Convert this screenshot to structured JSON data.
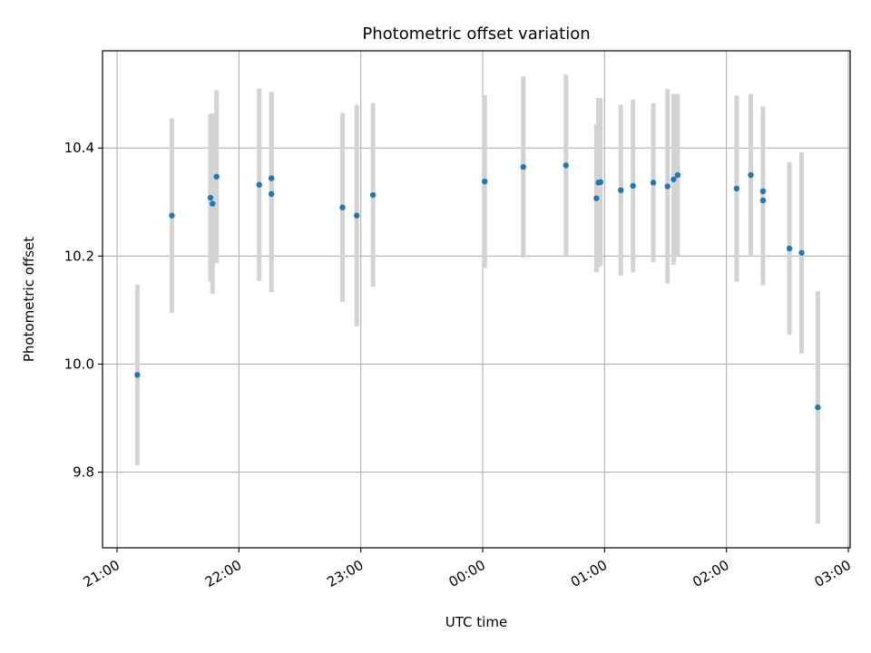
{
  "chart_data": {
    "type": "scatter",
    "title": "Photometric offset variation",
    "xlabel": "UTC time",
    "ylabel": "Photometric offset",
    "x_tick_labels": [
      "21:00",
      "22:00",
      "23:00",
      "00:00",
      "01:00",
      "02:00",
      "03:00"
    ],
    "y_ticks": [
      9.8,
      10.0,
      10.2,
      10.4
    ],
    "y_tick_labels": [
      "9.8",
      "10.0",
      "10.2",
      "10.4"
    ],
    "xlim": [
      "20:56",
      "03:00"
    ],
    "ylim": [
      9.66,
      10.58
    ],
    "grid": true,
    "legend": "none",
    "colors": {
      "point": "#1f77b4",
      "errorbar": "#d3d3d3",
      "grid": "#b0b0b0"
    },
    "points": [
      {
        "time": "21:10",
        "y": 9.98,
        "yerr": 0.167
      },
      {
        "time": "21:27",
        "y": 10.275,
        "yerr": 0.18
      },
      {
        "time": "21:46",
        "y": 10.308,
        "yerr": 0.155
      },
      {
        "time": "21:47",
        "y": 10.297,
        "yerr": 0.167
      },
      {
        "time": "21:49",
        "y": 10.347,
        "yerr": 0.16
      },
      {
        "time": "22:10",
        "y": 10.332,
        "yerr": 0.178
      },
      {
        "time": "22:16",
        "y": 10.315,
        "yerr": 0.182
      },
      {
        "time": "22:16",
        "y": 10.344,
        "yerr": 0.16
      },
      {
        "time": "22:51",
        "y": 10.29,
        "yerr": 0.175
      },
      {
        "time": "22:58",
        "y": 10.275,
        "yerr": 0.205
      },
      {
        "time": "23:06",
        "y": 10.313,
        "yerr": 0.17
      },
      {
        "time": "00:01",
        "y": 10.338,
        "yerr": 0.16
      },
      {
        "time": "00:20",
        "y": 10.365,
        "yerr": 0.168
      },
      {
        "time": "00:41",
        "y": 10.368,
        "yerr": 0.168
      },
      {
        "time": "00:56",
        "y": 10.307,
        "yerr": 0.137
      },
      {
        "time": "00:57",
        "y": 10.336,
        "yerr": 0.157
      },
      {
        "time": "00:58",
        "y": 10.337,
        "yerr": 0.155
      },
      {
        "time": "01:08",
        "y": 10.322,
        "yerr": 0.158
      },
      {
        "time": "01:14",
        "y": 10.33,
        "yerr": 0.16
      },
      {
        "time": "01:24",
        "y": 10.336,
        "yerr": 0.147
      },
      {
        "time": "01:31",
        "y": 10.329,
        "yerr": 0.18
      },
      {
        "time": "01:34",
        "y": 10.342,
        "yerr": 0.158
      },
      {
        "time": "01:36",
        "y": 10.35,
        "yerr": 0.15
      },
      {
        "time": "02:05",
        "y": 10.325,
        "yerr": 0.172
      },
      {
        "time": "02:12",
        "y": 10.35,
        "yerr": 0.15
      },
      {
        "time": "02:18",
        "y": 10.32,
        "yerr": 0.157
      },
      {
        "time": "02:18",
        "y": 10.303,
        "yerr": 0.157
      },
      {
        "time": "02:31",
        "y": 10.214,
        "yerr": 0.16
      },
      {
        "time": "02:37",
        "y": 10.206,
        "yerr": 0.186
      },
      {
        "time": "02:45",
        "y": 9.92,
        "yerr": 0.215
      }
    ]
  }
}
